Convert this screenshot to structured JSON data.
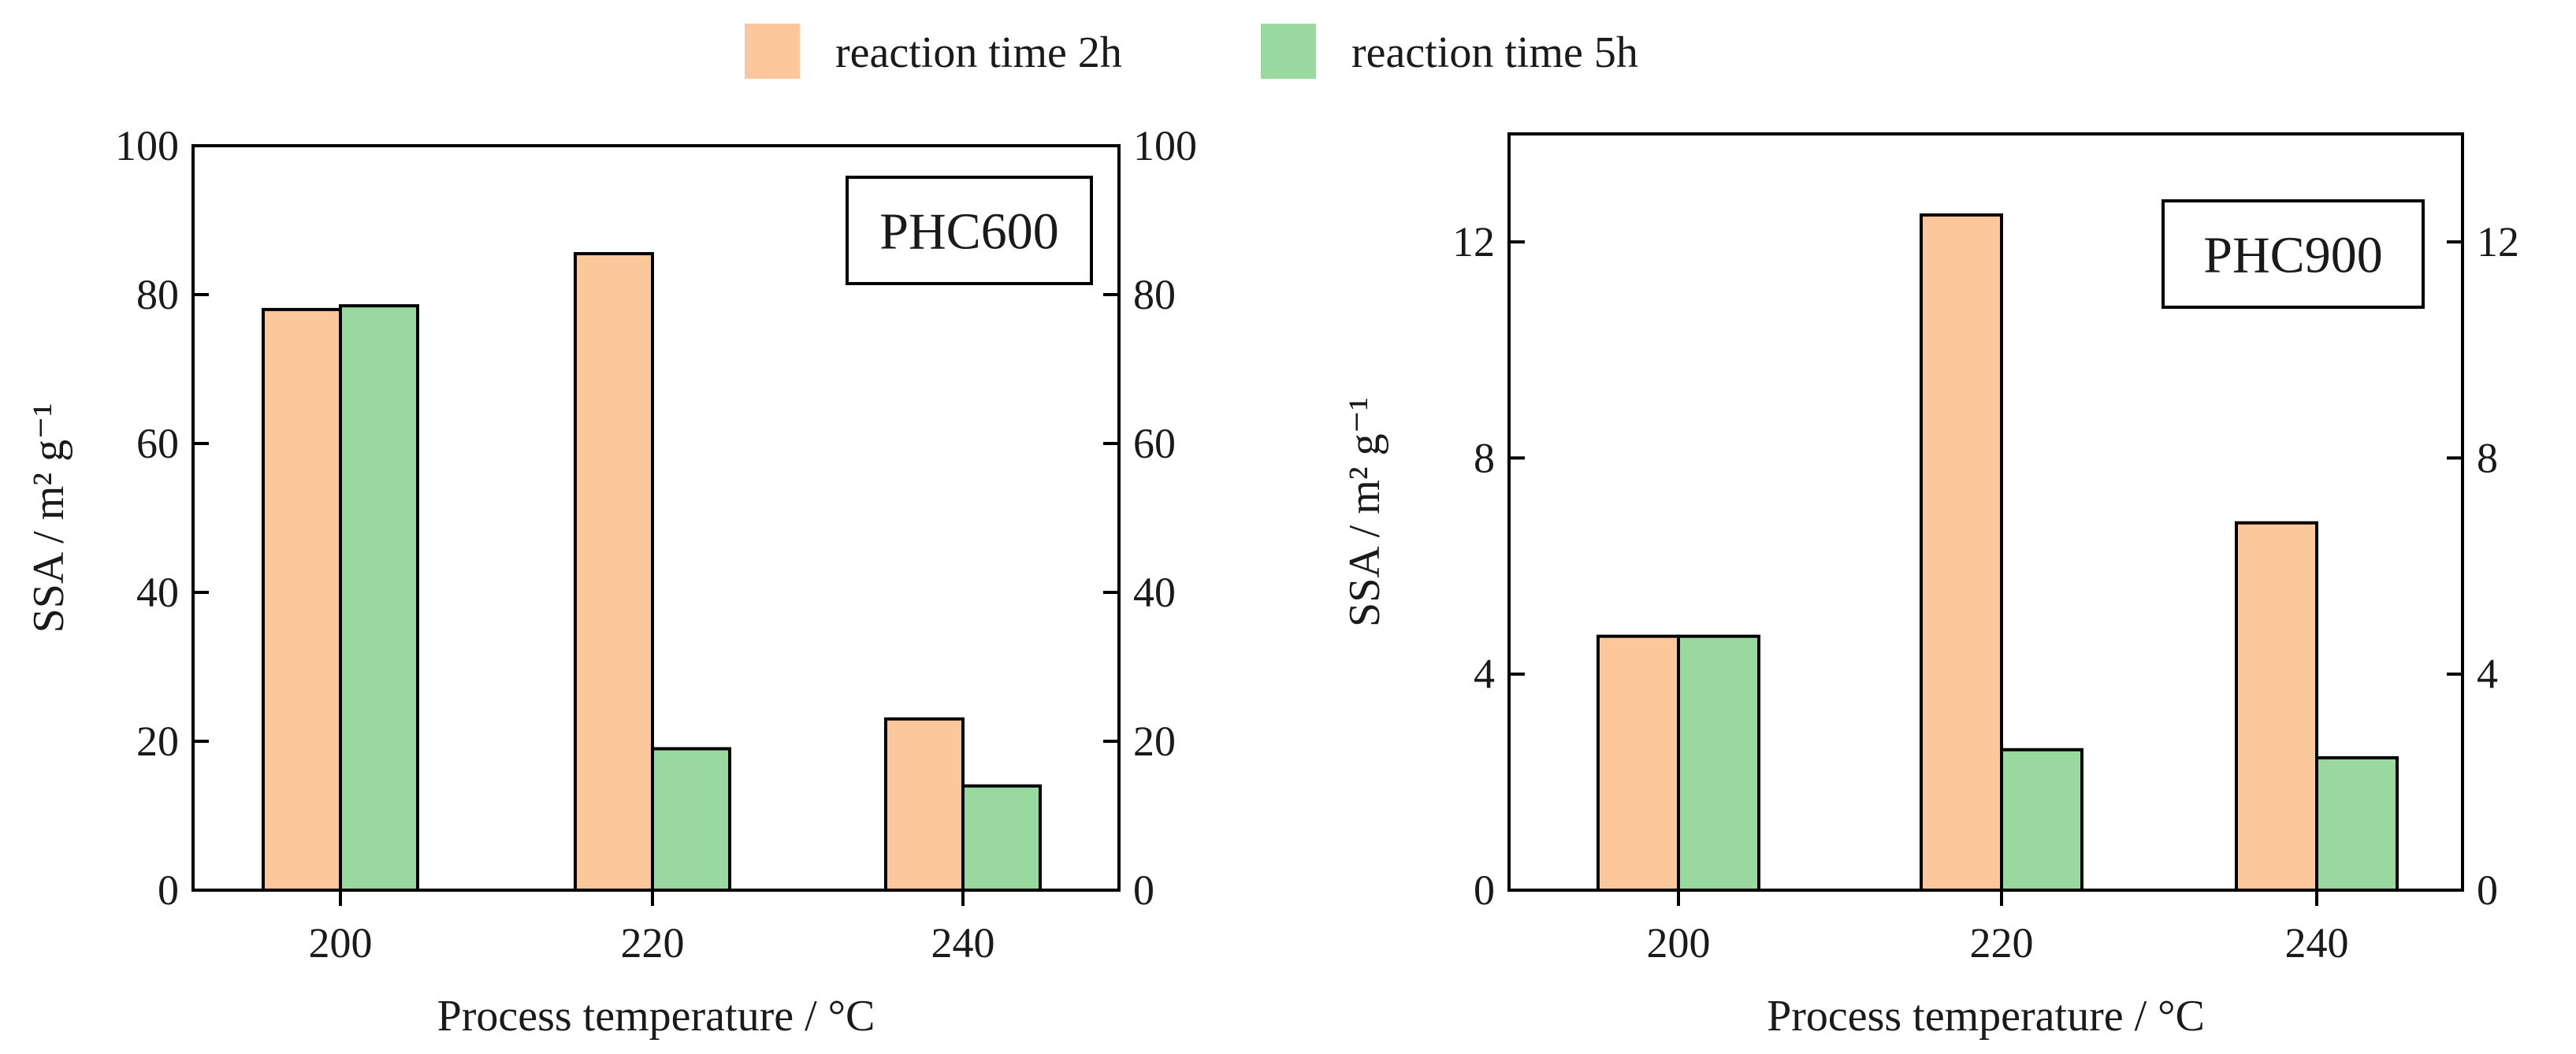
{
  "legend": {
    "items": [
      {
        "label": "reaction time 2h",
        "color": "#FCC89B"
      },
      {
        "label": "reaction time 5h",
        "color": "#99D89F"
      }
    ]
  },
  "chart_data": [
    {
      "type": "bar",
      "panel_label": "PHC600",
      "categories": [
        "200",
        "220",
        "240"
      ],
      "series": [
        {
          "name": "reaction time 2h",
          "values": [
            78,
            85.5,
            23
          ]
        },
        {
          "name": "reaction time 5h",
          "values": [
            78.5,
            19,
            14
          ]
        }
      ],
      "xlabel": "Process temperature / °C",
      "ylabel": "SSA / m² g⁻¹",
      "ylim": [
        0,
        100
      ],
      "yticks": [
        0,
        20,
        40,
        60,
        80,
        100
      ],
      "right_axis_mirrored": true
    },
    {
      "type": "bar",
      "panel_label": "PHC900",
      "categories": [
        "200",
        "220",
        "240"
      ],
      "series": [
        {
          "name": "reaction time 2h",
          "values": [
            4.7,
            12.5,
            6.8
          ]
        },
        {
          "name": "reaction time 5h",
          "values": [
            4.7,
            2.6,
            2.45
          ]
        }
      ],
      "xlabel": "Process temperature / °C",
      "ylabel": "SSA / m² g⁻¹",
      "ylim": [
        0,
        14
      ],
      "yticks": [
        0,
        4,
        8,
        12
      ],
      "right_axis_mirrored": true
    }
  ]
}
